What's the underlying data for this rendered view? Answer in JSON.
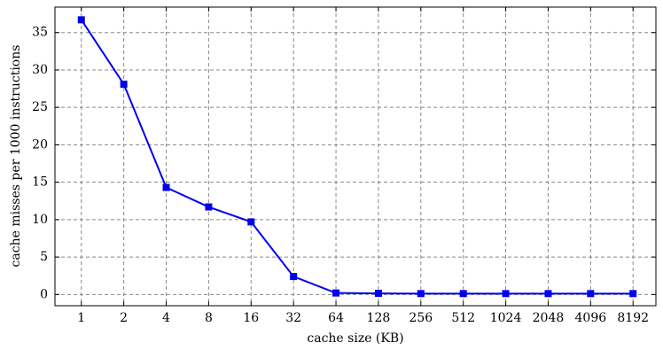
{
  "chart_data": {
    "type": "line",
    "x_label": "cache size (KB)",
    "y_label": "cache misses per 1000 instructions",
    "x": [
      1,
      2,
      4,
      8,
      16,
      32,
      64,
      128,
      256,
      512,
      1024,
      2048,
      4096,
      8192
    ],
    "series": [
      {
        "name": "cache misses",
        "color": "#0000ee",
        "values": [
          36.7,
          28.1,
          14.3,
          11.7,
          9.7,
          2.4,
          0.2,
          0.15,
          0.12,
          0.12,
          0.12,
          0.12,
          0.12,
          0.12
        ]
      }
    ],
    "xscale": "log2",
    "xlim": [
      0.65,
      11900
    ],
    "xticks": [
      1,
      2,
      4,
      8,
      16,
      32,
      64,
      128,
      256,
      512,
      1024,
      2048,
      4096,
      8192
    ],
    "ylim": [
      -1.5,
      38.4
    ],
    "yticks": [
      0,
      5,
      10,
      15,
      20,
      25,
      30,
      35
    ],
    "grid": true,
    "marker": "square"
  }
}
